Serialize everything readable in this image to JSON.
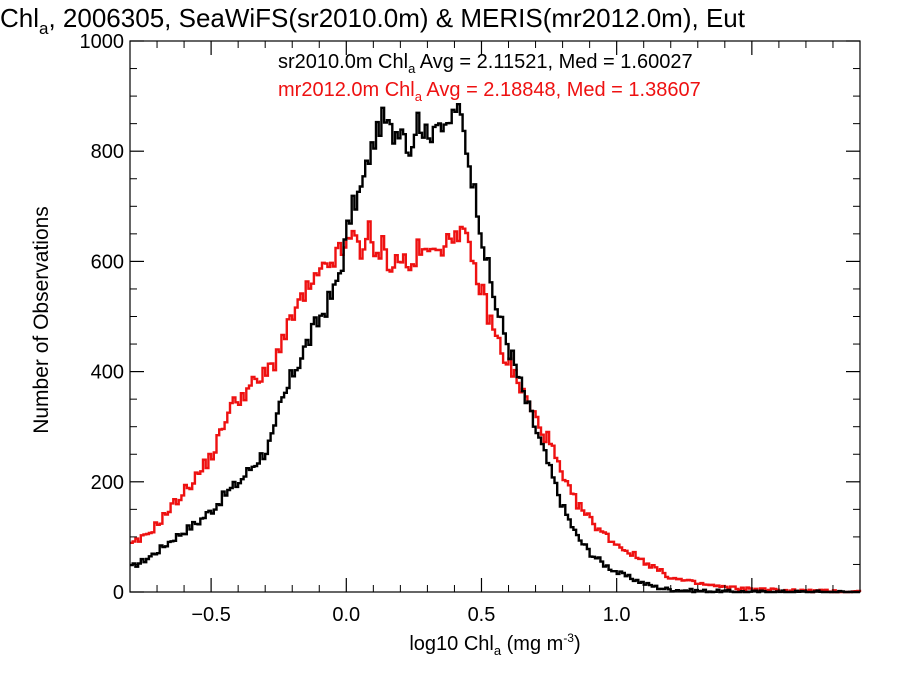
{
  "chart_data": {
    "type": "line",
    "title_parts": [
      "Chl",
      "a",
      ", 2006305, SeaWiFS(sr2010.0m) & MERIS(mr2012.0m), Eut"
    ],
    "xlabel_parts": [
      "log10 Chl",
      "a",
      " (mg m",
      "-3",
      ")"
    ],
    "ylabel": "Number of Observations",
    "xlim": [
      -0.8,
      1.9
    ],
    "ylim": [
      0,
      1000
    ],
    "x_ticks": [
      -0.5,
      0.0,
      0.5,
      1.0,
      1.5
    ],
    "x_tick_labels": [
      "−0.5",
      "0.0",
      "0.5",
      "1.0",
      "1.5"
    ],
    "y_ticks": [
      0,
      200,
      400,
      600,
      800,
      1000
    ],
    "y_tick_labels": [
      "0",
      "200",
      "400",
      "600",
      "800",
      "1000"
    ],
    "grid": false,
    "legend_position": "top-right",
    "series": [
      {
        "name": "sr2010.0m",
        "color": "#000000",
        "legend_parts": [
          "sr2010.0m Chl",
          "a",
          " Avg = 2.11521, Med = 1.60027"
        ],
        "points": [
          [
            -0.8,
            45
          ],
          [
            -0.75,
            58
          ],
          [
            -0.7,
            75
          ],
          [
            -0.65,
            95
          ],
          [
            -0.6,
            112
          ],
          [
            -0.55,
            128
          ],
          [
            -0.5,
            150
          ],
          [
            -0.45,
            178
          ],
          [
            -0.4,
            200
          ],
          [
            -0.35,
            230
          ],
          [
            -0.3,
            258
          ],
          [
            -0.27,
            290
          ],
          [
            -0.25,
            335
          ],
          [
            -0.22,
            370
          ],
          [
            -0.2,
            400
          ],
          [
            -0.15,
            450
          ],
          [
            -0.1,
            500
          ],
          [
            -0.05,
            545
          ],
          [
            -0.02,
            600
          ],
          [
            0.0,
            660
          ],
          [
            0.02,
            700
          ],
          [
            0.05,
            730
          ],
          [
            0.08,
            790
          ],
          [
            0.1,
            820
          ],
          [
            0.13,
            860
          ],
          [
            0.17,
            830
          ],
          [
            0.2,
            850
          ],
          [
            0.23,
            800
          ],
          [
            0.26,
            860
          ],
          [
            0.3,
            820
          ],
          [
            0.33,
            865
          ],
          [
            0.36,
            830
          ],
          [
            0.4,
            880
          ],
          [
            0.42,
            860
          ],
          [
            0.45,
            780
          ],
          [
            0.48,
            700
          ],
          [
            0.5,
            640
          ],
          [
            0.53,
            560
          ],
          [
            0.56,
            500
          ],
          [
            0.6,
            440
          ],
          [
            0.65,
            360
          ],
          [
            0.7,
            290
          ],
          [
            0.75,
            220
          ],
          [
            0.8,
            150
          ],
          [
            0.85,
            100
          ],
          [
            0.9,
            70
          ],
          [
            0.95,
            50
          ],
          [
            1.0,
            35
          ],
          [
            1.05,
            25
          ],
          [
            1.1,
            15
          ],
          [
            1.15,
            8
          ],
          [
            1.2,
            4
          ],
          [
            1.3,
            2
          ],
          [
            1.4,
            1
          ],
          [
            1.5,
            0
          ],
          [
            1.9,
            0
          ]
        ]
      },
      {
        "name": "mr2012.0m",
        "color": "#ee1111",
        "legend_parts": [
          "mr2012.0m Chl",
          "a",
          " Avg = 2.18848, Med = 1.38607"
        ],
        "points": [
          [
            -0.8,
            85
          ],
          [
            -0.75,
            100
          ],
          [
            -0.7,
            125
          ],
          [
            -0.65,
            155
          ],
          [
            -0.6,
            185
          ],
          [
            -0.55,
            215
          ],
          [
            -0.5,
            250
          ],
          [
            -0.47,
            285
          ],
          [
            -0.45,
            320
          ],
          [
            -0.4,
            355
          ],
          [
            -0.35,
            375
          ],
          [
            -0.3,
            395
          ],
          [
            -0.27,
            420
          ],
          [
            -0.25,
            450
          ],
          [
            -0.22,
            475
          ],
          [
            -0.2,
            505
          ],
          [
            -0.15,
            545
          ],
          [
            -0.1,
            575
          ],
          [
            -0.05,
            605
          ],
          [
            0.0,
            630
          ],
          [
            0.03,
            650
          ],
          [
            0.05,
            620
          ],
          [
            0.08,
            655
          ],
          [
            0.1,
            600
          ],
          [
            0.13,
            630
          ],
          [
            0.16,
            590
          ],
          [
            0.2,
            610
          ],
          [
            0.23,
            580
          ],
          [
            0.26,
            620
          ],
          [
            0.3,
            610
          ],
          [
            0.33,
            640
          ],
          [
            0.36,
            620
          ],
          [
            0.4,
            660
          ],
          [
            0.43,
            650
          ],
          [
            0.46,
            600
          ],
          [
            0.5,
            540
          ],
          [
            0.53,
            490
          ],
          [
            0.56,
            450
          ],
          [
            0.6,
            410
          ],
          [
            0.65,
            360
          ],
          [
            0.7,
            310
          ],
          [
            0.75,
            270
          ],
          [
            0.8,
            200
          ],
          [
            0.85,
            160
          ],
          [
            0.9,
            130
          ],
          [
            0.95,
            105
          ],
          [
            1.0,
            85
          ],
          [
            1.05,
            70
          ],
          [
            1.1,
            55
          ],
          [
            1.15,
            40
          ],
          [
            1.2,
            25
          ],
          [
            1.3,
            15
          ],
          [
            1.4,
            8
          ],
          [
            1.5,
            5
          ],
          [
            1.6,
            3
          ],
          [
            1.7,
            2
          ],
          [
            1.8,
            1
          ],
          [
            1.9,
            0
          ]
        ]
      }
    ]
  }
}
